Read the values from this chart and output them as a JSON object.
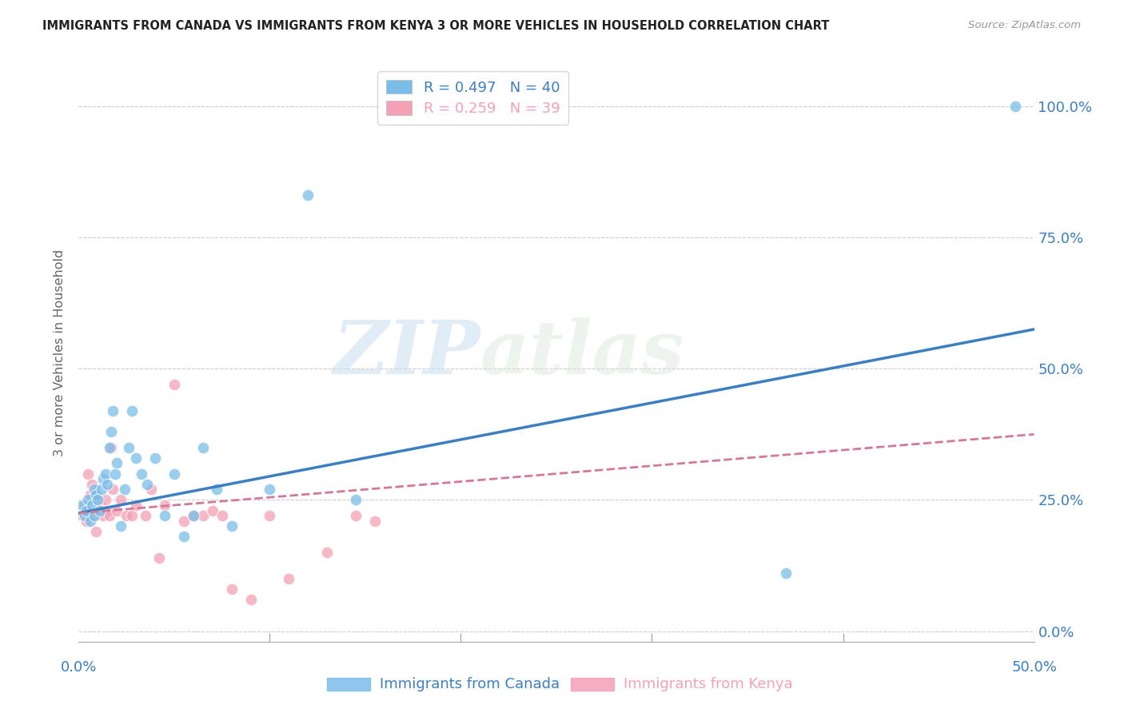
{
  "title": "IMMIGRANTS FROM CANADA VS IMMIGRANTS FROM KENYA 3 OR MORE VEHICLES IN HOUSEHOLD CORRELATION CHART",
  "source": "Source: ZipAtlas.com",
  "ylabel": "3 or more Vehicles in Household",
  "ytick_labels": [
    "0.0%",
    "25.0%",
    "50.0%",
    "75.0%",
    "100.0%"
  ],
  "ytick_values": [
    0.0,
    0.25,
    0.5,
    0.75,
    1.0
  ],
  "xlim": [
    0.0,
    0.5
  ],
  "ylim": [
    -0.02,
    1.08
  ],
  "canada_R": 0.497,
  "canada_N": 40,
  "kenya_R": 0.259,
  "kenya_N": 39,
  "canada_color": "#7abde8",
  "kenya_color": "#f4a0b5",
  "canada_line_color": "#3a7fc1",
  "kenya_line_color": "#d4789a",
  "watermark_zip": "ZIP",
  "watermark_atlas": "atlas",
  "canada_scatter_x": [
    0.002,
    0.003,
    0.004,
    0.005,
    0.006,
    0.007,
    0.008,
    0.008,
    0.009,
    0.01,
    0.011,
    0.012,
    0.013,
    0.014,
    0.015,
    0.016,
    0.017,
    0.018,
    0.019,
    0.02,
    0.022,
    0.024,
    0.026,
    0.028,
    0.03,
    0.033,
    0.036,
    0.04,
    0.045,
    0.05,
    0.055,
    0.06,
    0.065,
    0.072,
    0.08,
    0.1,
    0.12,
    0.145,
    0.37,
    0.49
  ],
  "canada_scatter_y": [
    0.24,
    0.22,
    0.23,
    0.25,
    0.21,
    0.24,
    0.27,
    0.22,
    0.26,
    0.25,
    0.23,
    0.27,
    0.29,
    0.3,
    0.28,
    0.35,
    0.38,
    0.42,
    0.3,
    0.32,
    0.2,
    0.27,
    0.35,
    0.42,
    0.33,
    0.3,
    0.28,
    0.33,
    0.22,
    0.3,
    0.18,
    0.22,
    0.35,
    0.27,
    0.2,
    0.27,
    0.83,
    0.25,
    0.11,
    1.0
  ],
  "kenya_scatter_x": [
    0.002,
    0.003,
    0.004,
    0.005,
    0.006,
    0.007,
    0.008,
    0.009,
    0.01,
    0.011,
    0.012,
    0.013,
    0.014,
    0.015,
    0.016,
    0.017,
    0.018,
    0.02,
    0.022,
    0.025,
    0.028,
    0.03,
    0.035,
    0.038,
    0.042,
    0.045,
    0.05,
    0.055,
    0.06,
    0.065,
    0.07,
    0.075,
    0.08,
    0.09,
    0.1,
    0.11,
    0.13,
    0.145,
    0.155
  ],
  "kenya_scatter_y": [
    0.22,
    0.24,
    0.21,
    0.3,
    0.26,
    0.28,
    0.22,
    0.19,
    0.25,
    0.24,
    0.23,
    0.22,
    0.25,
    0.23,
    0.22,
    0.35,
    0.27,
    0.23,
    0.25,
    0.22,
    0.22,
    0.24,
    0.22,
    0.27,
    0.14,
    0.24,
    0.47,
    0.21,
    0.22,
    0.22,
    0.23,
    0.22,
    0.08,
    0.06,
    0.22,
    0.1,
    0.15,
    0.22,
    0.21
  ],
  "canada_line_x": [
    0.0,
    0.5
  ],
  "canada_line_y": [
    0.225,
    0.575
  ],
  "kenya_line_x": [
    0.0,
    0.5
  ],
  "kenya_line_y": [
    0.225,
    0.375
  ]
}
